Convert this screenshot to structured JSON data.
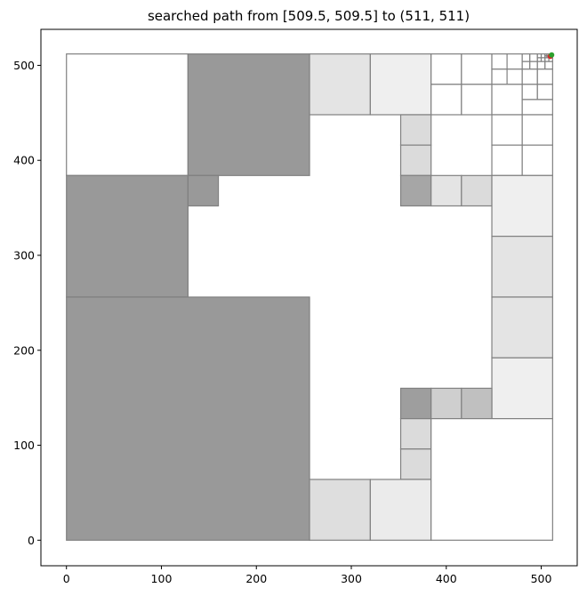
{
  "chart_data": {
    "type": "heatmap",
    "title": "searched path from [509.5, 509.5] to (511, 511)",
    "xlabel": "",
    "ylabel": "",
    "xlim": [
      -26.9,
      537.9
    ],
    "ylim": [
      -26.9,
      537.9
    ],
    "xticks": [
      0,
      100,
      200,
      300,
      400,
      500
    ],
    "yticks": [
      0,
      100,
      200,
      300,
      400,
      500
    ],
    "grid": false,
    "path": [
      [
        509.5,
        509.5
      ],
      [
        511,
        511
      ]
    ],
    "path_color": "#d62728",
    "goal_color": "#2ca02c",
    "cells": [
      {
        "x": 0,
        "y": 384,
        "w": 128,
        "h": 128,
        "fill": "#ffffff"
      },
      {
        "x": 128,
        "y": 384,
        "w": 128,
        "h": 128,
        "fill": "#999999"
      },
      {
        "x": 256,
        "y": 448,
        "w": 64,
        "h": 64,
        "fill": "#e4e4e4"
      },
      {
        "x": 320,
        "y": 448,
        "w": 64,
        "h": 64,
        "fill": "#efefef"
      },
      {
        "x": 384,
        "y": 480,
        "w": 32,
        "h": 32,
        "fill": "#ffffff"
      },
      {
        "x": 416,
        "y": 480,
        "w": 32,
        "h": 32,
        "fill": "#ffffff"
      },
      {
        "x": 384,
        "y": 448,
        "w": 32,
        "h": 32,
        "fill": "#ffffff"
      },
      {
        "x": 416,
        "y": 448,
        "w": 32,
        "h": 32,
        "fill": "#ffffff"
      },
      {
        "x": 448,
        "y": 496,
        "w": 16,
        "h": 16,
        "fill": "#ffffff"
      },
      {
        "x": 464,
        "y": 496,
        "w": 16,
        "h": 16,
        "fill": "#ffffff"
      },
      {
        "x": 448,
        "y": 480,
        "w": 16,
        "h": 16,
        "fill": "#ffffff"
      },
      {
        "x": 464,
        "y": 480,
        "w": 16,
        "h": 16,
        "fill": "#ffffff"
      },
      {
        "x": 448,
        "y": 448,
        "w": 32,
        "h": 32,
        "fill": "#ffffff"
      },
      {
        "x": 480,
        "y": 504,
        "w": 8,
        "h": 8,
        "fill": "#ffffff"
      },
      {
        "x": 488,
        "y": 504,
        "w": 8,
        "h": 8,
        "fill": "#ffffff"
      },
      {
        "x": 480,
        "y": 496,
        "w": 8,
        "h": 8,
        "fill": "#ffffff"
      },
      {
        "x": 488,
        "y": 496,
        "w": 8,
        "h": 8,
        "fill": "#ffffff"
      },
      {
        "x": 496,
        "y": 508,
        "w": 4,
        "h": 4,
        "fill": "#ffffff"
      },
      {
        "x": 500,
        "y": 508,
        "w": 4,
        "h": 4,
        "fill": "#ffffff"
      },
      {
        "x": 496,
        "y": 504,
        "w": 4,
        "h": 4,
        "fill": "#ffffff"
      },
      {
        "x": 500,
        "y": 504,
        "w": 4,
        "h": 4,
        "fill": "#ffffff"
      },
      {
        "x": 504,
        "y": 510,
        "w": 2,
        "h": 2,
        "fill": "#ffffff"
      },
      {
        "x": 506,
        "y": 510,
        "w": 2,
        "h": 2,
        "fill": "#ffffff"
      },
      {
        "x": 504,
        "y": 508,
        "w": 2,
        "h": 2,
        "fill": "#ffffff"
      },
      {
        "x": 506,
        "y": 508,
        "w": 2,
        "h": 2,
        "fill": "#ffffff"
      },
      {
        "x": 504,
        "y": 504,
        "w": 4,
        "h": 4,
        "fill": "#ffffff"
      },
      {
        "x": 508,
        "y": 508,
        "w": 4,
        "h": 4,
        "fill": "#ffffff"
      },
      {
        "x": 508,
        "y": 504,
        "w": 4,
        "h": 4,
        "fill": "#ffffff"
      },
      {
        "x": 496,
        "y": 496,
        "w": 8,
        "h": 8,
        "fill": "#ffffff"
      },
      {
        "x": 504,
        "y": 496,
        "w": 8,
        "h": 8,
        "fill": "#ffffff"
      },
      {
        "x": 480,
        "y": 480,
        "w": 16,
        "h": 16,
        "fill": "#ffffff"
      },
      {
        "x": 496,
        "y": 480,
        "w": 16,
        "h": 16,
        "fill": "#ffffff"
      },
      {
        "x": 480,
        "y": 464,
        "w": 16,
        "h": 16,
        "fill": "#ffffff"
      },
      {
        "x": 496,
        "y": 464,
        "w": 16,
        "h": 16,
        "fill": "#ffffff"
      },
      {
        "x": 480,
        "y": 448,
        "w": 32,
        "h": 16,
        "fill": "#ffffff"
      },
      {
        "x": 448,
        "y": 416,
        "w": 32,
        "h": 32,
        "fill": "#ffffff"
      },
      {
        "x": 480,
        "y": 416,
        "w": 32,
        "h": 32,
        "fill": "#ffffff"
      },
      {
        "x": 448,
        "y": 384,
        "w": 32,
        "h": 32,
        "fill": "#ffffff"
      },
      {
        "x": 480,
        "y": 384,
        "w": 32,
        "h": 32,
        "fill": "#ffffff"
      },
      {
        "x": 0,
        "y": 256,
        "w": 128,
        "h": 128,
        "fill": "#999999"
      },
      {
        "x": 128,
        "y": 352,
        "w": 32,
        "h": 32,
        "fill": "#999999"
      },
      {
        "x": 352,
        "y": 416,
        "w": 32,
        "h": 32,
        "fill": "#dbdbdb"
      },
      {
        "x": 352,
        "y": 384,
        "w": 32,
        "h": 32,
        "fill": "#dbdbdb"
      },
      {
        "x": 352,
        "y": 352,
        "w": 32,
        "h": 32,
        "fill": "#a6a6a6"
      },
      {
        "x": 384,
        "y": 352,
        "w": 32,
        "h": 32,
        "fill": "#e4e4e4"
      },
      {
        "x": 416,
        "y": 352,
        "w": 32,
        "h": 32,
        "fill": "#dbdbdb"
      },
      {
        "x": 448,
        "y": 320,
        "w": 64,
        "h": 64,
        "fill": "#efefef"
      },
      {
        "x": 448,
        "y": 256,
        "w": 64,
        "h": 64,
        "fill": "#e4e4e4"
      },
      {
        "x": 0,
        "y": 0,
        "w": 256,
        "h": 256,
        "fill": "#999999"
      },
      {
        "x": 448,
        "y": 192,
        "w": 64,
        "h": 64,
        "fill": "#e4e4e4"
      },
      {
        "x": 448,
        "y": 128,
        "w": 64,
        "h": 64,
        "fill": "#efefef"
      },
      {
        "x": 352,
        "y": 128,
        "w": 32,
        "h": 32,
        "fill": "#9e9e9e"
      },
      {
        "x": 384,
        "y": 128,
        "w": 32,
        "h": 32,
        "fill": "#cfcfcf"
      },
      {
        "x": 416,
        "y": 128,
        "w": 32,
        "h": 32,
        "fill": "#c0c0c0"
      },
      {
        "x": 352,
        "y": 96,
        "w": 32,
        "h": 32,
        "fill": "#dbdbdb"
      },
      {
        "x": 352,
        "y": 64,
        "w": 32,
        "h": 32,
        "fill": "#dbdbdb"
      },
      {
        "x": 256,
        "y": 0,
        "w": 64,
        "h": 64,
        "fill": "#dedede"
      },
      {
        "x": 320,
        "y": 0,
        "w": 64,
        "h": 64,
        "fill": "#ebebeb"
      },
      {
        "x": 384,
        "y": 0,
        "w": 128,
        "h": 128,
        "fill": "#ffffff"
      }
    ]
  }
}
